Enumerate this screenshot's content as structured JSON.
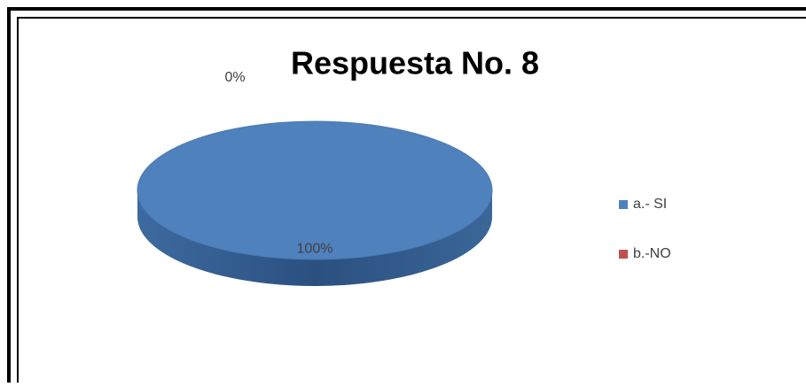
{
  "chart_data": {
    "type": "pie",
    "title": "Respuesta No. 8",
    "categories": [
      "a.- SI",
      "b.-NO"
    ],
    "values": [
      100,
      0
    ],
    "value_labels": [
      "100%",
      "0%"
    ],
    "colors": [
      "#4f81bd",
      "#c0504d"
    ],
    "legend": "right"
  }
}
